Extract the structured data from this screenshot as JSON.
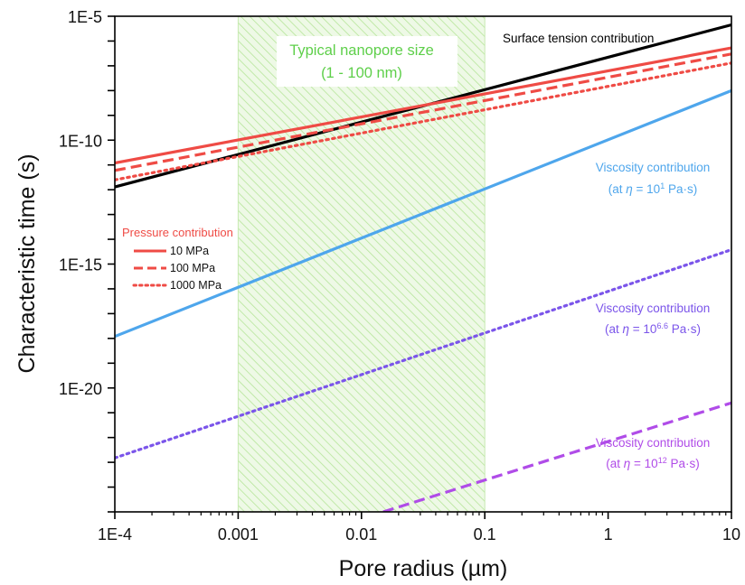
{
  "chart_data": {
    "type": "line",
    "title": "",
    "xlabel": "Pore radius (µm)",
    "ylabel": "Characteristic time (s)",
    "xscale": "log",
    "yscale": "log",
    "xlim": [
      0.0001,
      10
    ],
    "ylim": [
      1e-25,
      1e-05
    ],
    "xticks": [
      {
        "value": 0.0001,
        "label": "1E-4"
      },
      {
        "value": 0.001,
        "label": "0.001"
      },
      {
        "value": 0.01,
        "label": "0.01"
      },
      {
        "value": 0.1,
        "label": "0.1"
      },
      {
        "value": 1,
        "label": "1"
      },
      {
        "value": 10,
        "label": "10"
      }
    ],
    "yticks": [
      {
        "value": 1e-20,
        "label": "1E-20"
      },
      {
        "value": 1e-15,
        "label": "1E-15"
      },
      {
        "value": 1e-10,
        "label": "1E-10"
      },
      {
        "value": 1e-05,
        "label": "1E-5"
      }
    ],
    "shaded_region": {
      "x": [
        0.001,
        0.1
      ],
      "label_line1": "Typical nanopore size",
      "label_line2": "(1 - 100 nm)",
      "color": "#9ee07a"
    },
    "series": [
      {
        "key": "surface",
        "style": "solid",
        "color": "#000000",
        "x": [
          0.0001,
          10
        ],
        "y": [
          1.3e-12,
          4.5e-06
        ]
      },
      {
        "key": "p10",
        "name": "10 MPa",
        "style": "solid",
        "color": "#ef4b45",
        "x": [
          0.0001,
          10
        ],
        "y": [
          1.2e-11,
          5.3e-07
        ]
      },
      {
        "key": "p100",
        "name": "100 MPa",
        "style": "dashed",
        "color": "#ef4b45",
        "x": [
          0.0001,
          10
        ],
        "y": [
          6e-12,
          3e-07
        ]
      },
      {
        "key": "p1000",
        "name": "1000 MPa",
        "style": "dotted",
        "color": "#ef4b45",
        "x": [
          0.0001,
          10
        ],
        "y": [
          2.5e-12,
          1.3e-07
        ]
      },
      {
        "key": "visc1",
        "style": "solid",
        "color": "#4ea6ec",
        "x": [
          0.0001,
          10
        ],
        "y": [
          1.2e-18,
          1e-08
        ]
      },
      {
        "key": "visc66",
        "style": "dotted",
        "color": "#7b55ea",
        "x": [
          0.0001,
          10
        ],
        "y": [
          1.5e-23,
          3.8e-15
        ]
      },
      {
        "key": "visc12",
        "style": "dashed",
        "color": "#b04ce8",
        "x": [
          0.015,
          10
        ],
        "y": [
          1e-25,
          2.5e-21
        ]
      }
    ],
    "annotations": {
      "surface": {
        "text": "Surface tension contribution",
        "color": "#000000"
      },
      "visc1": {
        "line1": "Viscosity contribution",
        "line2_prefix": "(at ",
        "eta": "η",
        "line2_mid": " = 10",
        "sup": "1",
        "line2_suffix": " Pa·s)",
        "color": "#4ea6ec"
      },
      "visc66": {
        "line1": "Viscosity contribution",
        "line2_prefix": "(at ",
        "eta": "η",
        "line2_mid": " = 10",
        "sup": "6.6",
        "line2_suffix": " Pa·s)",
        "color": "#7b55ea"
      },
      "visc12": {
        "line1": "Viscosity contribution",
        "line2_prefix": "(at ",
        "eta": "η",
        "line2_mid": " = 10",
        "sup": "12",
        "line2_suffix": " Pa·s)",
        "color": "#b04ce8"
      }
    },
    "legend": {
      "title": "Pressure contribution",
      "title_color": "#ef4b45",
      "position": "left-middle",
      "entries": [
        "p10",
        "p100",
        "p1000"
      ]
    }
  }
}
